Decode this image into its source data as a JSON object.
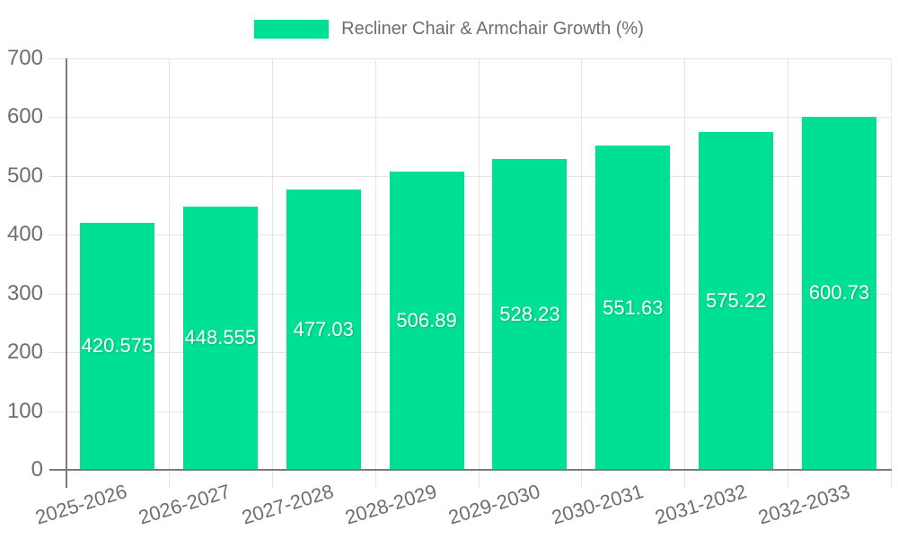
{
  "legend": {
    "series_label": "Recliner Chair & Armchair Growth (%)"
  },
  "chart_data": {
    "type": "bar",
    "title": "Recliner Chair & Armchair Growth (%)",
    "categories": [
      "2025-2026",
      "2026-2027",
      "2027-2028",
      "2028-2029",
      "2029-2030",
      "2030-2031",
      "2031-2032",
      "2032-2033"
    ],
    "values": [
      420.575,
      448.555,
      477.03,
      506.89,
      528.23,
      551.63,
      575.22,
      600.73
    ],
    "value_labels": [
      "420.575",
      "448.555",
      "477.03",
      "506.89",
      "528.23",
      "551.63",
      "575.22",
      "600.73"
    ],
    "xlabel": "",
    "ylabel": "",
    "ylim": [
      0,
      700
    ],
    "yticks": [
      0,
      100,
      200,
      300,
      400,
      500,
      600,
      700
    ],
    "grid": true,
    "legend_position": "top",
    "bar_color": "#00E094",
    "value_label_color": "#ffffff",
    "axis_text_color": "#6e6e6e"
  }
}
